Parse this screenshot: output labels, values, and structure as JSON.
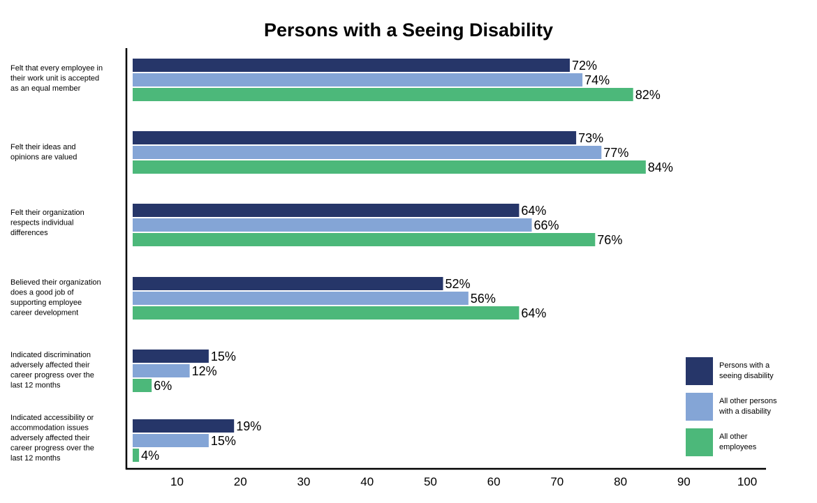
{
  "chart_data": {
    "type": "bar",
    "orientation": "horizontal",
    "title": "Persons with a Seeing Disability",
    "xlabel": "",
    "ylabel": "",
    "xlim": [
      3,
      100
    ],
    "xticks": [
      10,
      20,
      30,
      40,
      50,
      60,
      70,
      80,
      90,
      100
    ],
    "grid": false,
    "legend_position": "bottom-right",
    "categories": [
      [
        "Felt that every employee in",
        "their work unit is accepted",
        "as an equal member"
      ],
      [
        "Felt their ideas and",
        "opinions are valued"
      ],
      [
        "Felt their organization",
        "respects individual",
        "differences"
      ],
      [
        "Believed their organization",
        "does a good job of",
        "supporting employee",
        "career development"
      ],
      [
        "Indicated discrimination",
        "adversely affected their",
        "career progress over the",
        "last 12 months"
      ],
      [
        "Indicated accessibility or",
        "accommodation issues",
        "adversely affected their",
        "career progress over the",
        "last 12 months"
      ]
    ],
    "value_suffix": "%",
    "series": [
      {
        "name": "Persons with a seeing disability",
        "legend_lines": [
          "Persons with a",
          "seeing disability"
        ],
        "color": "#263669",
        "values": [
          72,
          73,
          64,
          52,
          15,
          19
        ]
      },
      {
        "name": "All other persons with a disability",
        "legend_lines": [
          "All other persons",
          "with a disability"
        ],
        "color": "#84a5d6",
        "values": [
          74,
          77,
          66,
          56,
          12,
          15
        ]
      },
      {
        "name": "All other employees",
        "legend_lines": [
          "All other",
          "employees"
        ],
        "color": "#4cb87a",
        "values": [
          82,
          84,
          76,
          64,
          6,
          4
        ]
      }
    ]
  }
}
